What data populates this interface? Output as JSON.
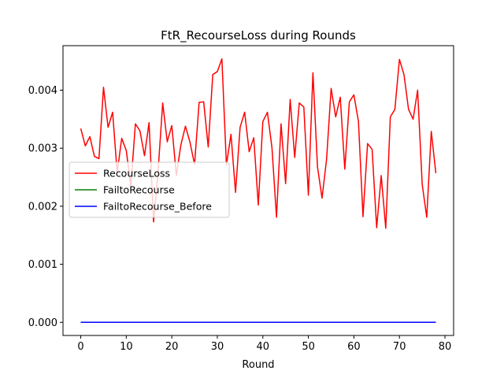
{
  "chart_data": {
    "type": "line",
    "title": "FtR_RecourseLoss during Rounds",
    "xlabel": "Round",
    "ylabel": "",
    "xlim": [
      -3.9,
      81.9
    ],
    "ylim": [
      -0.000227,
      0.004767
    ],
    "xticks": [
      0,
      10,
      20,
      30,
      40,
      50,
      60,
      70,
      80
    ],
    "yticks": [
      0.0,
      0.001,
      0.002,
      0.003,
      0.004
    ],
    "ytick_labels": [
      "0.000",
      "0.001",
      "0.002",
      "0.003",
      "0.004"
    ],
    "legend": {
      "location": "center-left"
    },
    "grid": false,
    "series": [
      {
        "name": "RecourseLoss",
        "color": "#ff0000",
        "x": [
          0,
          1,
          2,
          3,
          4,
          5,
          6,
          7,
          8,
          9,
          10,
          11,
          12,
          13,
          14,
          15,
          16,
          17,
          18,
          19,
          20,
          21,
          22,
          23,
          24,
          25,
          26,
          27,
          28,
          29,
          30,
          31,
          32,
          33,
          34,
          35,
          36,
          37,
          38,
          39,
          40,
          41,
          42,
          43,
          44,
          45,
          46,
          47,
          48,
          49,
          50,
          51,
          52,
          53,
          54,
          55,
          56,
          57,
          58,
          59,
          60,
          61,
          62,
          63,
          64,
          65,
          66,
          67,
          68,
          69,
          70,
          71,
          72,
          73,
          74,
          75,
          76,
          77,
          78
        ],
        "values": [
          0.00334,
          0.00304,
          0.0032,
          0.00286,
          0.00282,
          0.00405,
          0.00336,
          0.00362,
          0.00258,
          0.00317,
          0.00296,
          0.00235,
          0.00342,
          0.0033,
          0.00287,
          0.00344,
          0.00173,
          0.00262,
          0.00378,
          0.00311,
          0.00339,
          0.00253,
          0.00306,
          0.00338,
          0.0031,
          0.00272,
          0.00379,
          0.0038,
          0.00302,
          0.00427,
          0.00432,
          0.00454,
          0.00271,
          0.00324,
          0.00224,
          0.00336,
          0.00362,
          0.00294,
          0.00318,
          0.00202,
          0.00346,
          0.00362,
          0.00301,
          0.00181,
          0.00342,
          0.00239,
          0.00384,
          0.00284,
          0.00378,
          0.00371,
          0.00219,
          0.0043,
          0.00268,
          0.00214,
          0.00281,
          0.00403,
          0.00354,
          0.00388,
          0.00264,
          0.0038,
          0.00392,
          0.00346,
          0.00182,
          0.00308,
          0.00298,
          0.00163,
          0.00253,
          0.00162,
          0.00354,
          0.00367,
          0.00453,
          0.00427,
          0.00367,
          0.0035,
          0.004,
          0.00238,
          0.00181,
          0.00329,
          0.00257
        ]
      },
      {
        "name": "FailtoRecourse",
        "color": "#008000",
        "x": [
          0,
          78
        ],
        "values": [
          0,
          0
        ]
      },
      {
        "name": "FailtoRecourse_Before",
        "color": "#0000ff",
        "x": [
          0,
          78
        ],
        "values": [
          0,
          0
        ]
      }
    ]
  }
}
